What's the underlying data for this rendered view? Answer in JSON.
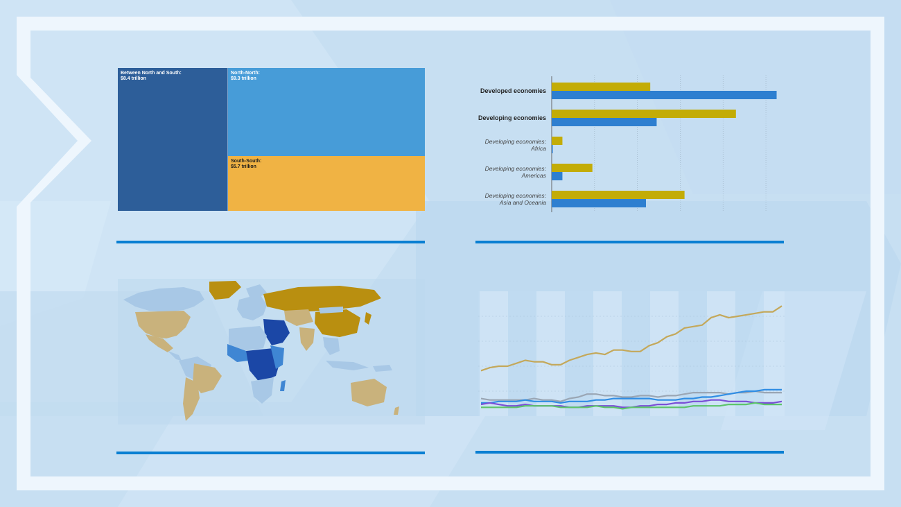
{
  "colors": {
    "background": "#c9e1f3",
    "frame": "#eef6fd",
    "rule": "#0a7fd2",
    "gold": "#c3ac06",
    "blue": "#2e7fd0"
  },
  "treemap": {
    "cells": [
      {
        "label": "Between North and South:",
        "value_text": "$8.4 trillion",
        "value": 8.4,
        "color": "#2d5e99",
        "text_color": "#ffffff"
      },
      {
        "label": "North-North:",
        "value_text": "$9.3 trillion",
        "value": 9.3,
        "color": "#479cd8",
        "text_color": "#ffffff"
      },
      {
        "label": "South-South:",
        "value_text": "$5.7 trillion",
        "value": 5.7,
        "color": "#f0b344",
        "text_color": "#1a1a1a"
      }
    ]
  },
  "bar_labels": [
    {
      "line1": "Developed economies",
      "line2": "",
      "style": "bold"
    },
    {
      "line1": "Developing economies",
      "line2": "",
      "style": "bold"
    },
    {
      "line1": "Developing economies:",
      "line2": "Africa",
      "style": "ital"
    },
    {
      "line1": "Developing economies:",
      "line2": "Americas",
      "style": "ital"
    },
    {
      "line1": "Developing economies:",
      "line2": "Asia and Oceania",
      "style": "ital"
    }
  ],
  "chart_data": [
    {
      "type": "bar",
      "orientation": "horizontal",
      "categories": [
        "Developed economies",
        "Developing economies",
        "Developing economies: Africa",
        "Developing economies: Americas",
        "Developing economies: Asia and Oceania"
      ],
      "series": [
        {
          "color": "#c3ac06",
          "values": [
            46,
            86,
            5,
            19,
            62
          ]
        },
        {
          "color": "#2e7fd0",
          "values": [
            105,
            49,
            0.5,
            5,
            44
          ]
        }
      ],
      "xlim": [
        0,
        110
      ],
      "grid": true
    },
    {
      "type": "line",
      "x": [
        1,
        2,
        3,
        4,
        5,
        6,
        7,
        8,
        9,
        10,
        11,
        12,
        13,
        14,
        15,
        16,
        17,
        18,
        19,
        20,
        21,
        22,
        23,
        24,
        25,
        26,
        27,
        28,
        29,
        30,
        31,
        32,
        33,
        34,
        35
      ],
      "series": [
        {
          "color": "#c4a85a",
          "values": [
            26,
            28,
            29,
            29,
            31,
            33,
            32,
            32,
            30,
            30,
            33,
            35,
            37,
            38,
            37,
            40,
            40,
            39,
            39,
            43,
            45,
            49,
            51,
            55,
            56,
            57,
            62,
            64,
            62,
            63,
            64,
            65,
            66,
            66,
            70
          ]
        },
        {
          "color": "#9aa6b4",
          "values": [
            7,
            6,
            6,
            6,
            6,
            6,
            7,
            6,
            6,
            5,
            7,
            8,
            10,
            10,
            9,
            9,
            8,
            8,
            9,
            9,
            8,
            9,
            9,
            10,
            11,
            11,
            11,
            11,
            10,
            11,
            11,
            12,
            11,
            11,
            11
          ]
        },
        {
          "color": "#2f8de4",
          "values": [
            4,
            4,
            5,
            5,
            5,
            6,
            5,
            5,
            5,
            4,
            5,
            5,
            5,
            6,
            6,
            7,
            7,
            7,
            7,
            7,
            6,
            6,
            6,
            7,
            7,
            8,
            8,
            9,
            10,
            11,
            12,
            12,
            13,
            13,
            13
          ]
        },
        {
          "color": "#7a4fd6",
          "values": [
            3,
            4,
            3,
            2,
            2,
            3,
            2,
            2,
            2,
            2,
            1,
            1,
            2,
            2,
            2,
            2,
            1,
            1,
            2,
            2,
            3,
            3,
            4,
            4,
            5,
            5,
            6,
            6,
            5,
            5,
            5,
            4,
            4,
            4,
            5
          ]
        },
        {
          "color": "#5cc46a",
          "values": [
            1,
            1,
            1,
            1,
            1,
            2,
            2,
            2,
            2,
            1,
            1,
            1,
            1,
            2,
            1,
            1,
            0,
            1,
            1,
            1,
            1,
            1,
            1,
            1,
            2,
            2,
            2,
            2,
            3,
            3,
            3,
            4,
            3,
            3,
            3
          ]
        }
      ],
      "ylim": [
        -5,
        80
      ],
      "grid": true
    }
  ],
  "map": {
    "colors": {
      "gold": "#b98f10",
      "tan": "#c9b27c",
      "light_blue": "#a8c8e6",
      "mid_blue": "#3f86d3",
      "dark_blue": "#1b47a6",
      "ocean": "#bcd8ee"
    }
  }
}
